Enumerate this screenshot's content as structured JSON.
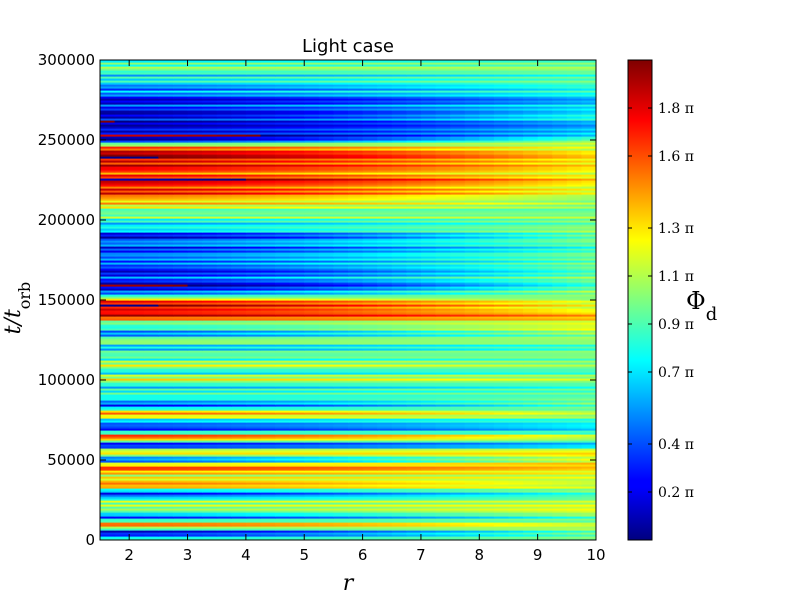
{
  "chart_data": {
    "type": "heatmap",
    "title": "Light case",
    "xlabel": "r",
    "ylabel": "t/t_orb",
    "ylabel_main": "t/t",
    "ylabel_sub": "orb",
    "xlim": [
      1.5,
      10
    ],
    "ylim": [
      0,
      300000
    ],
    "x_ticks": [
      2,
      3,
      4,
      5,
      6,
      7,
      8,
      9,
      10
    ],
    "x_tick_labels": [
      "2",
      "3",
      "4",
      "5",
      "6",
      "7",
      "8",
      "9",
      "10"
    ],
    "y_ticks": [
      0,
      50000,
      100000,
      150000,
      200000,
      250000,
      300000
    ],
    "y_tick_labels": [
      "0",
      "50000",
      "100000",
      "150000",
      "200000",
      "250000",
      "300000"
    ],
    "colormap": "jet",
    "colorbar": {
      "label": "Φ",
      "label_sub": "d",
      "range": [
        0,
        2
      ],
      "ticks": [
        0.2,
        0.4,
        0.7,
        0.9,
        1.1,
        1.3,
        1.6,
        1.8
      ],
      "tick_labels": [
        "0.2 π",
        "0.4 π",
        "0.7 π",
        "0.9 π",
        "1.1 π",
        "1.3 π",
        "1.6 π",
        "1.8 π"
      ]
    },
    "phase_profile": {
      "t": [
        0,
        5000,
        10000,
        15000,
        20000,
        25000,
        30000,
        35000,
        40000,
        45000,
        50000,
        55000,
        60000,
        65000,
        70000,
        75000,
        80000,
        85000,
        90000,
        95000,
        100000,
        105000,
        110000,
        115000,
        120000,
        125000,
        130000,
        135000,
        140000,
        145000,
        150000,
        155000,
        160000,
        165000,
        170000,
        175000,
        180000,
        185000,
        190000,
        195000,
        200000,
        205000,
        210000,
        215000,
        220000,
        225000,
        230000,
        235000,
        240000,
        245000,
        250000,
        255000,
        260000,
        265000,
        270000,
        275000,
        280000,
        285000,
        290000,
        295000,
        300000
      ],
      "phase_inner": [
        0.8,
        0.2,
        1.6,
        0.3,
        1.2,
        0.9,
        0.3,
        1.7,
        1.0,
        1.8,
        0.4,
        1.3,
        0.2,
        1.8,
        0.1,
        0.8,
        1.5,
        0.2,
        1.0,
        0.6,
        1.2,
        0.8,
        1.1,
        0.9,
        0.7,
        1.0,
        0.5,
        0.9,
        1.7,
        1.9,
        1.6,
        0.3,
        0.1,
        0.4,
        0.2,
        0.6,
        0.3,
        0.5,
        0.2,
        0.7,
        0.8,
        1.0,
        1.2,
        1.6,
        1.7,
        1.9,
        1.6,
        1.8,
        1.9,
        1.8,
        0.1,
        0.1,
        0.2,
        0.1,
        0.3,
        0.2,
        0.5,
        0.6,
        0.8,
        0.9,
        1.0
      ],
      "phase_outer": [
        0.9,
        1.0,
        1.1,
        0.9,
        1.3,
        1.0,
        0.9,
        1.2,
        1.1,
        1.4,
        1.2,
        1.3,
        0.6,
        1.2,
        0.6,
        0.9,
        1.1,
        0.9,
        1.0,
        0.8,
        1.1,
        0.9,
        1.0,
        1.0,
        0.9,
        1.0,
        1.1,
        1.2,
        1.4,
        1.2,
        1.1,
        1.0,
        0.9,
        1.0,
        0.9,
        1.0,
        0.9,
        0.9,
        1.0,
        1.0,
        1.0,
        1.0,
        1.0,
        1.1,
        1.2,
        1.3,
        1.2,
        1.3,
        1.3,
        1.2,
        1.0,
        0.6,
        0.6,
        0.8,
        0.7,
        0.6,
        0.8,
        0.9,
        0.9,
        1.0,
        1.0
      ]
    }
  }
}
